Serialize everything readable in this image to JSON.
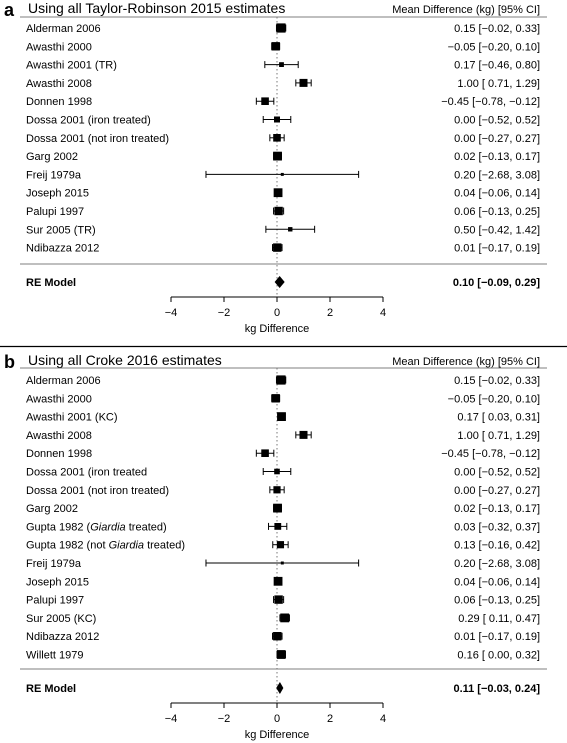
{
  "chart_data": [
    {
      "type": "forest",
      "panel_label": "a",
      "title": "Using all Taylor-Robinson 2015 estimates",
      "column_header": "Mean Difference (kg) [95% CI]",
      "xlabel": "kg Difference",
      "xlim": [
        -4,
        4
      ],
      "xticks": [
        "−4",
        "−2",
        "0",
        "2",
        "4"
      ],
      "reference_line": 0,
      "studies": [
        {
          "label": "Alderman 2006",
          "est": 0.15,
          "lo": -0.02,
          "hi": 0.33,
          "text": "0.15 [−0.02,   0.33]",
          "weight": 0.9
        },
        {
          "label": "Awasthi 2000",
          "est": -0.05,
          "lo": -0.2,
          "hi": 0.1,
          "text": "−0.05 [−0.20,   0.10]",
          "weight": 0.8
        },
        {
          "label": "Awasthi 2001 (TR)",
          "est": 0.17,
          "lo": -0.46,
          "hi": 0.8,
          "text": "0.17 [−0.46,   0.80]",
          "weight": 0.35
        },
        {
          "label": "Awasthi 2008",
          "est": 1.0,
          "lo": 0.71,
          "hi": 1.29,
          "text": "1.00 [  0.71,   1.29]",
          "weight": 0.75
        },
        {
          "label": "Donnen 1998",
          "est": -0.45,
          "lo": -0.78,
          "hi": -0.12,
          "text": "−0.45 [−0.78, −0.12]",
          "weight": 0.7
        },
        {
          "label": "Dossa 2001 (iron treated)",
          "est": 0.0,
          "lo": -0.52,
          "hi": 0.52,
          "text": "0.00 [−0.52,   0.52]",
          "weight": 0.5
        },
        {
          "label": "Dossa 2001 (not iron treated)",
          "est": 0.0,
          "lo": -0.27,
          "hi": 0.27,
          "text": "0.00 [−0.27,   0.27]",
          "weight": 0.7
        },
        {
          "label": "Garg 2002",
          "est": 0.02,
          "lo": -0.13,
          "hi": 0.17,
          "text": "0.02 [−0.13,   0.17]",
          "weight": 0.85
        },
        {
          "label": "Freij 1979a",
          "est": 0.2,
          "lo": -2.68,
          "hi": 3.08,
          "text": "0.20 [−2.68,   3.08]",
          "weight": 0.12
        },
        {
          "label": "Joseph 2015",
          "est": 0.04,
          "lo": -0.06,
          "hi": 0.14,
          "text": "0.04 [−0.06,   0.14]",
          "weight": 0.85
        },
        {
          "label": "Palupi 1997",
          "est": 0.06,
          "lo": -0.13,
          "hi": 0.25,
          "text": "0.06 [−0.13,   0.25]",
          "weight": 0.8
        },
        {
          "label": "Sur 2005 (TR)",
          "est": 0.5,
          "lo": -0.42,
          "hi": 1.42,
          "text": "0.50 [−0.42,   1.42]",
          "weight": 0.3
        },
        {
          "label": "Ndibazza 2012",
          "est": 0.01,
          "lo": -0.17,
          "hi": 0.19,
          "text": "0.01 [−0.17,   0.19]",
          "weight": 0.8
        }
      ],
      "summary": {
        "label": "RE Model",
        "est": 0.1,
        "lo": -0.09,
        "hi": 0.29,
        "text": "0.10 [−0.09,   0.29]"
      }
    },
    {
      "type": "forest",
      "panel_label": "b",
      "title": "Using all Croke 2016 estimates",
      "column_header": "Mean Difference (kg) [95% CI]",
      "xlabel": "kg Difference",
      "xlim": [
        -4,
        4
      ],
      "xticks": [
        "−4",
        "−2",
        "0",
        "2",
        "4"
      ],
      "reference_line": 0,
      "studies": [
        {
          "label": "Alderman 2006",
          "est": 0.15,
          "lo": -0.02,
          "hi": 0.33,
          "text": "0.15 [−0.02,   0.33]",
          "weight": 0.9
        },
        {
          "label": "Awasthi 2000",
          "est": -0.05,
          "lo": -0.2,
          "hi": 0.1,
          "text": "−0.05 [−0.20,   0.10]",
          "weight": 0.8
        },
        {
          "label": "Awasthi 2001 (KC)",
          "est": 0.17,
          "lo": 0.03,
          "hi": 0.31,
          "text": "0.17 [  0.03,   0.31]",
          "weight": 0.85
        },
        {
          "label": "Awasthi 2008",
          "est": 1.0,
          "lo": 0.71,
          "hi": 1.29,
          "text": "1.00 [  0.71,   1.29]",
          "weight": 0.75
        },
        {
          "label": "Donnen 1998",
          "est": -0.45,
          "lo": -0.78,
          "hi": -0.12,
          "text": "−0.45 [−0.78, −0.12]",
          "weight": 0.7
        },
        {
          "label": "Dossa 2001 (iron treated",
          "est": 0.0,
          "lo": -0.52,
          "hi": 0.52,
          "text": "0.00 [−0.52,   0.52]",
          "weight": 0.45
        },
        {
          "label": "Dossa 2001 (not iron treated)",
          "est": 0.0,
          "lo": -0.27,
          "hi": 0.27,
          "text": "0.00 [−0.27,   0.27]",
          "weight": 0.65
        },
        {
          "label": "Garg 2002",
          "est": 0.02,
          "lo": -0.13,
          "hi": 0.17,
          "text": "0.02 [−0.13,   0.17]",
          "weight": 0.85
        },
        {
          "label": "Gupta 1982 (",
          "label_italic": "Giardia",
          "label_after": " treated)",
          "est": 0.03,
          "lo": -0.32,
          "hi": 0.37,
          "text": "0.03 [−0.32,   0.37]",
          "weight": 0.6
        },
        {
          "label": "Gupta 1982 (not ",
          "label_italic": "Giardia",
          "label_after": " treated)",
          "est": 0.13,
          "lo": -0.16,
          "hi": 0.42,
          "text": "0.13 [−0.16,   0.42]",
          "weight": 0.65
        },
        {
          "label": "Freij 1979a",
          "est": 0.2,
          "lo": -2.68,
          "hi": 3.08,
          "text": "0.20 [−2.68,   3.08]",
          "weight": 0.12
        },
        {
          "label": "Joseph 2015",
          "est": 0.04,
          "lo": -0.06,
          "hi": 0.14,
          "text": "0.04 [−0.06,   0.14]",
          "weight": 0.85
        },
        {
          "label": "Palupi 1997",
          "est": 0.06,
          "lo": -0.13,
          "hi": 0.25,
          "text": "0.06 [−0.13,   0.25]",
          "weight": 0.8
        },
        {
          "label": "Sur 2005 (KC)",
          "est": 0.29,
          "lo": 0.11,
          "hi": 0.47,
          "text": "0.29 [  0.11,   0.47]",
          "weight": 0.85
        },
        {
          "label": "Ndibazza 2012",
          "est": 0.01,
          "lo": -0.17,
          "hi": 0.19,
          "text": "0.01 [−0.17,   0.19]",
          "weight": 0.8
        },
        {
          "label": "Willett 1979",
          "est": 0.16,
          "lo": 0.0,
          "hi": 0.32,
          "text": "0.16 [  0.00,   0.32]",
          "weight": 0.85
        }
      ],
      "summary": {
        "label": "RE Model",
        "est": 0.11,
        "lo": -0.03,
        "hi": 0.24,
        "text": "0.11 [−0.03,   0.24]"
      }
    }
  ]
}
